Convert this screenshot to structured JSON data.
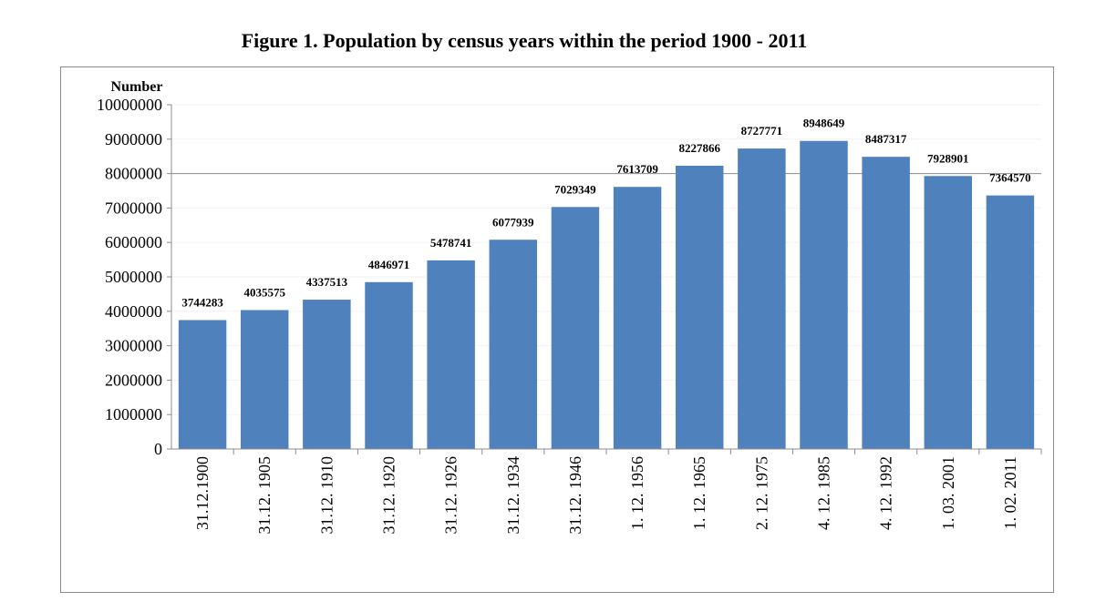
{
  "chart_data": {
    "type": "bar",
    "title": "Figure 1. Population by census years within the period 1900 - 2011",
    "ylabel": "Number",
    "xlabel": "",
    "ylim": [
      0,
      10000000
    ],
    "yticks": [
      0,
      1000000,
      2000000,
      3000000,
      4000000,
      5000000,
      6000000,
      7000000,
      8000000,
      9000000,
      10000000
    ],
    "grid": true,
    "legend": "none",
    "bar_color": "#4f81bd",
    "categories": [
      "31.12.1900",
      "31.12. 1905",
      "31.12. 1910",
      "31.12. 1920",
      "31.12. 1926",
      "31.12. 1934",
      "31.12. 1946",
      "1. 12. 1956",
      "1. 12. 1965",
      "2. 12. 1975",
      "4. 12. 1985",
      "4. 12. 1992",
      "1. 03. 2001",
      "1. 02. 2011"
    ],
    "values": [
      3744283,
      4035575,
      4337513,
      4846971,
      5478741,
      6077939,
      7029349,
      7613709,
      8227866,
      8727771,
      8948649,
      8487317,
      7928901,
      7364570
    ],
    "data_labels": [
      "3744283",
      "4035575",
      "4337513",
      "4846971",
      "5478741",
      "6077939",
      "7029349",
      "7613709",
      "8227866",
      "8727771",
      "8948649",
      "8487317",
      "7928901",
      "7364570"
    ],
    "ytick_labels": [
      "0",
      "1000000",
      "2000000",
      "3000000",
      "4000000",
      "5000000",
      "6000000",
      "7000000",
      "8000000",
      "9000000",
      "10000000"
    ]
  }
}
